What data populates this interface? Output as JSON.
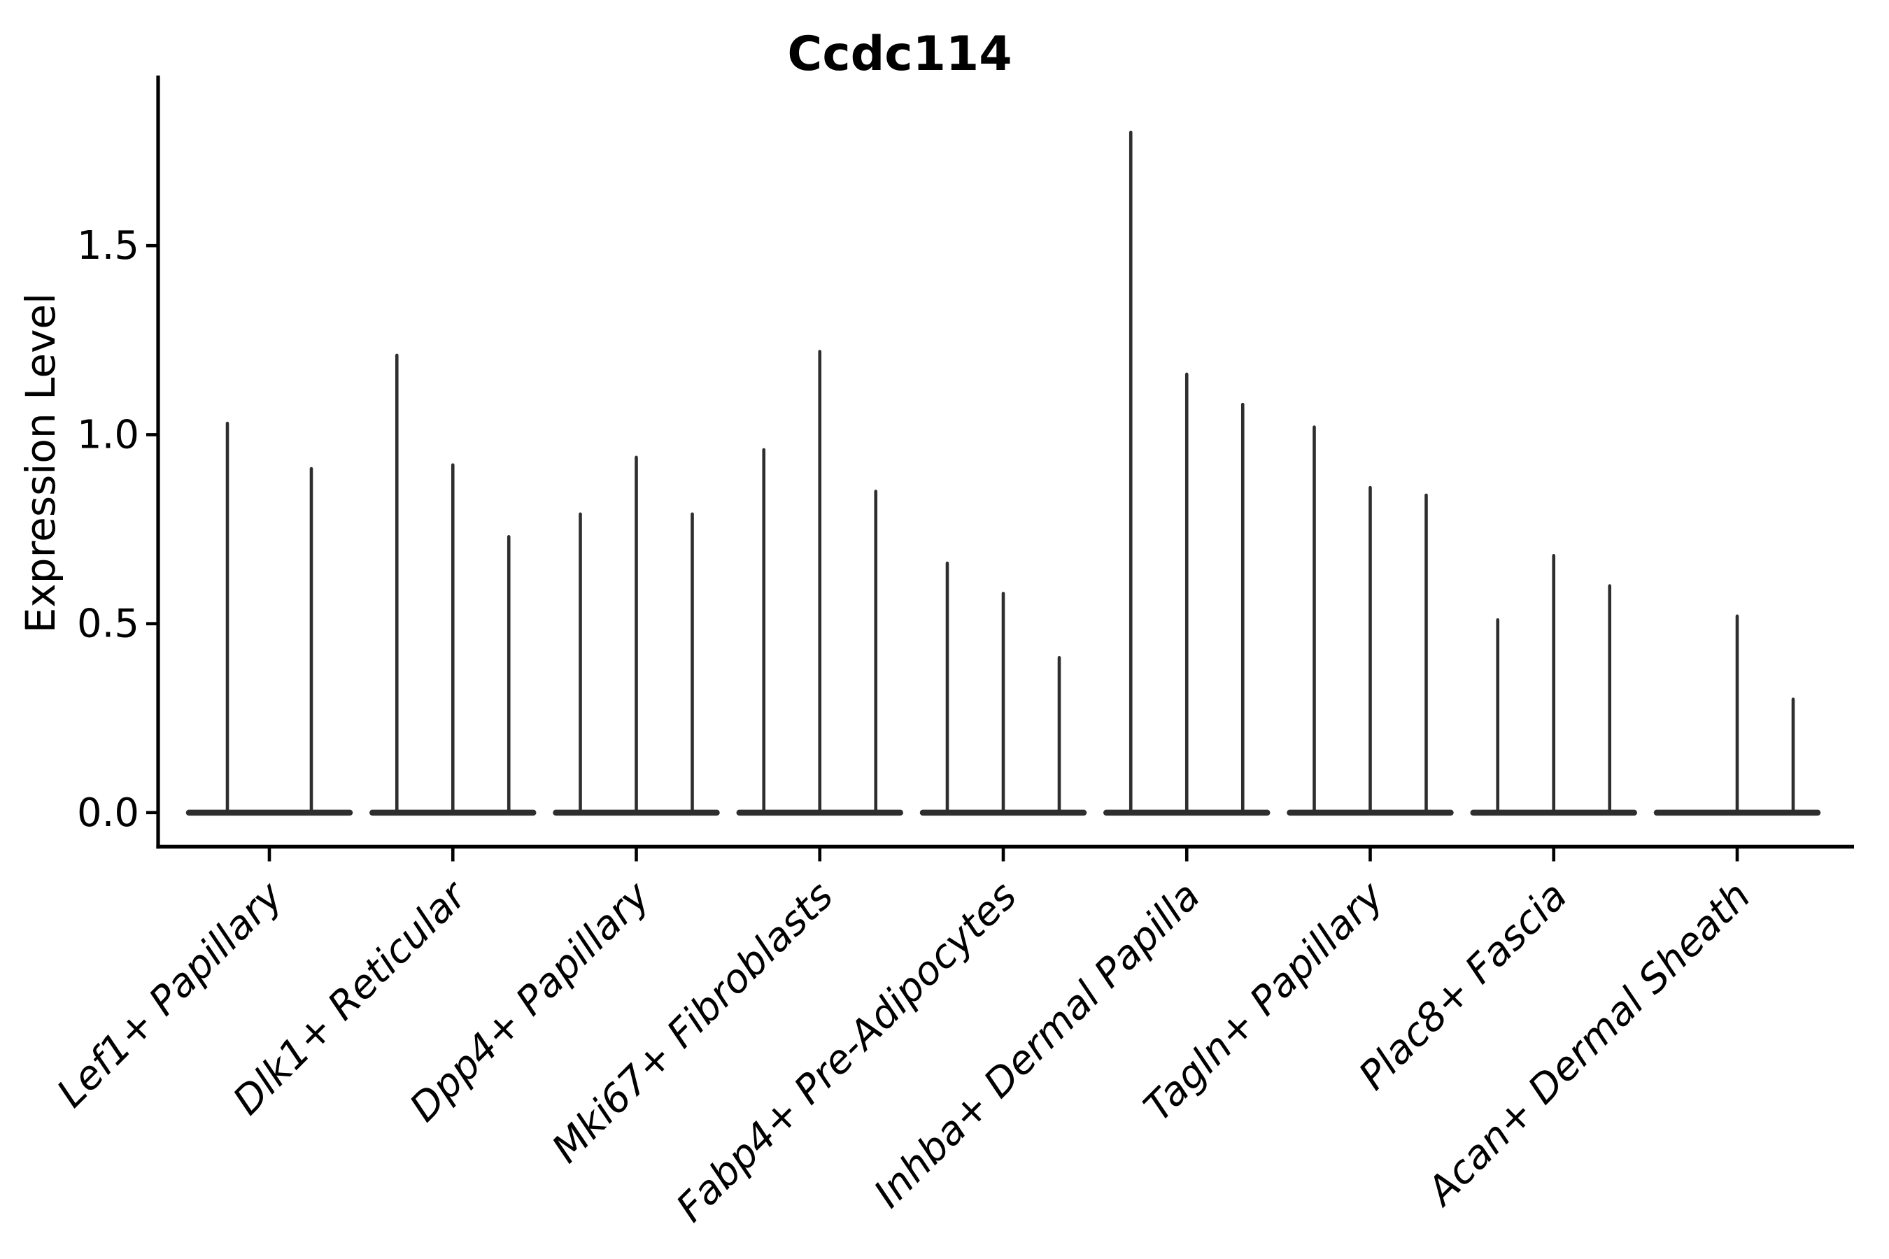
{
  "chart_data": {
    "type": "violin",
    "title": "Ccdc114",
    "ylabel": "Expression Level",
    "xlabel": "",
    "grid": false,
    "legend": false,
    "ytick_values": [
      0.0,
      0.5,
      1.0,
      1.5
    ],
    "ytick_labels": [
      "0.0",
      "0.5",
      "1.0",
      "1.5"
    ],
    "ylim": [
      -0.09,
      1.95
    ],
    "note": "Needle-thin violin plot; each category holds 2-3 violins whose maxima are listed; null = violin present with zero expression (flat base only)",
    "categories": [
      "Lef1+ Papillary",
      "Dlk1+ Reticular",
      "Dpp4+ Papillary",
      "Mki67+ Fibroblasts",
      "Fabp4+ Pre-Adipocytes",
      "Inhba+ Dermal Papilla",
      "Tagln+ Papillary",
      "Plac8+ Fascia",
      "Acan+ Dermal Sheath"
    ],
    "groups": [
      {
        "label": "Lef1+ Papillary",
        "violins": [
          1.03,
          0.91
        ]
      },
      {
        "label": "Dlk1+ Reticular",
        "violins": [
          1.21,
          0.92,
          0.73
        ]
      },
      {
        "label": "Dpp4+ Papillary",
        "violins": [
          0.79,
          0.94,
          0.79
        ]
      },
      {
        "label": "Mki67+ Fibroblasts",
        "violins": [
          0.96,
          1.22,
          0.85
        ]
      },
      {
        "label": "Fabp4+ Pre-Adipocytes",
        "violins": [
          0.66,
          0.58,
          0.41
        ]
      },
      {
        "label": "Inhba+ Dermal Papilla",
        "violins": [
          1.8,
          1.16,
          1.08
        ]
      },
      {
        "label": "Tagln+ Papillary",
        "violins": [
          1.02,
          0.86,
          0.84
        ]
      },
      {
        "label": "Plac8+ Fascia",
        "violins": [
          0.51,
          0.68,
          0.6
        ]
      },
      {
        "label": "Acan+ Dermal Sheath",
        "violins": [
          null,
          0.52,
          0.3
        ]
      }
    ],
    "colors": {
      "violin_stroke": "#2e2e2e",
      "axis": "#000000",
      "text": "#000000",
      "background": "#ffffff"
    }
  }
}
